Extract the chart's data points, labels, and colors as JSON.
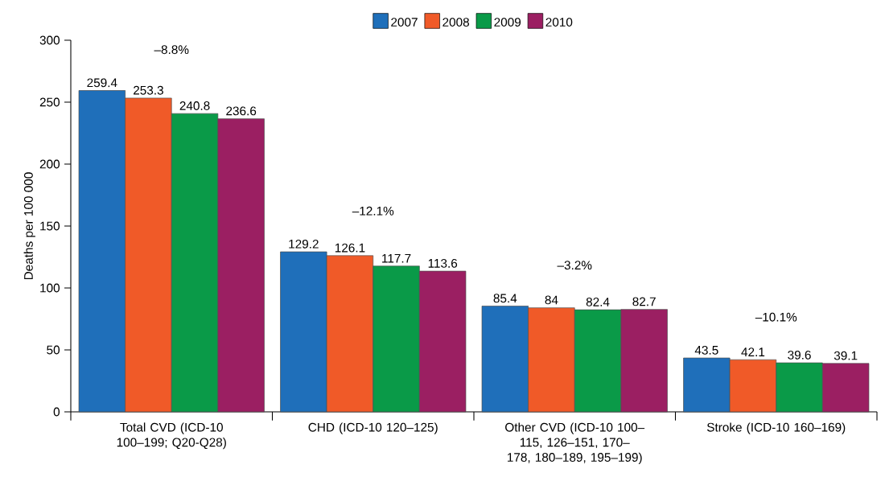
{
  "chart_data": {
    "type": "bar",
    "ylabel": "Deaths per 100 000",
    "categories": [
      "Total CVD (ICD-10 100–199; Q20-Q28)",
      "CHD (ICD-10 120–125)",
      "Other CVD (ICD-10 100–115, 126–151, 170–178, 180–189, 195–199)",
      "Stroke (ICD-10 160–169)"
    ],
    "series": [
      {
        "name": "2007",
        "color": "#1f6fba",
        "values": [
          259.4,
          129.2,
          85.4,
          43.5
        ]
      },
      {
        "name": "2008",
        "color": "#f05a28",
        "values": [
          253.3,
          126.1,
          84,
          42.1
        ]
      },
      {
        "name": "2009",
        "color": "#0a9a48",
        "values": [
          240.8,
          117.7,
          82.4,
          39.6
        ]
      },
      {
        "name": "2010",
        "color": "#9b1f62",
        "values": [
          236.6,
          113.6,
          82.7,
          39.1
        ]
      }
    ],
    "annotations": [
      "–8.8%",
      "–12.1%",
      "–3.2%",
      "–10.1%"
    ],
    "ylim": [
      0,
      300
    ],
    "yticks": [
      0,
      50,
      100,
      150,
      200,
      250,
      300
    ],
    "data_labels": true,
    "legend": "top",
    "grid": false
  }
}
